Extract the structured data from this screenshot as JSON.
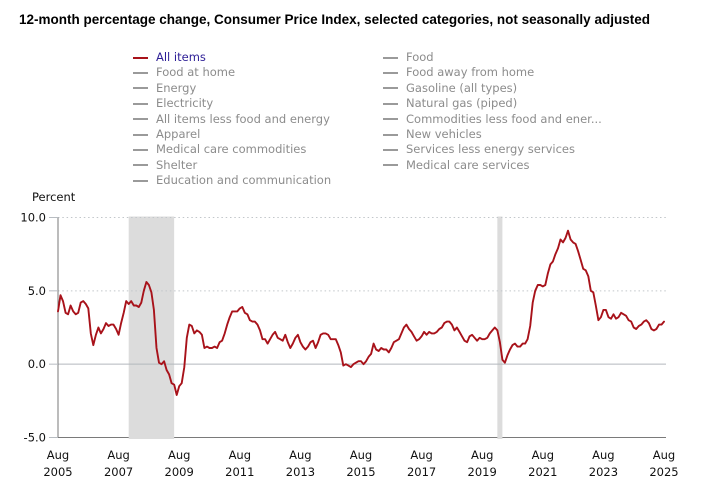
{
  "title": "12-month percentage change, Consumer Price Index, selected categories, not seasonally adjusted",
  "colors": {
    "line": "#a8121a",
    "selected_legend_text": "#2d1e96",
    "legend_text": "#8c8c8c",
    "legend_dash": "#9a9a9a",
    "recession_band": "#dcdcdc",
    "grid_dotted": "#c2c6ca",
    "zero_line": "#b3b8bd",
    "axis": "#7a7a7a",
    "tick": "#b7bcc1",
    "label": "#111111"
  },
  "legend": {
    "selected": "All items",
    "columns": [
      [
        "All items",
        "Food at home",
        "Energy",
        "Electricity",
        "All items less food and energy",
        "Apparel",
        "Medical care commodities",
        "Shelter",
        "Education and communication"
      ],
      [
        "Food",
        "Food away from home",
        "Gasoline (all types)",
        "Natural gas (piped)",
        "Commodities less food and ener...",
        "New vehicles",
        "Services less energy services",
        "Medical care services"
      ]
    ]
  },
  "chart_data": {
    "type": "line",
    "title": "12-month percentage change, Consumer Price Index, selected categories, not seasonally adjusted",
    "xlabel": "",
    "ylabel": "Percent",
    "ylim": [
      -5,
      10
    ],
    "grid": "horizontal-only",
    "legend_position": "top",
    "frequency": "monthly",
    "x_start": "2005-08",
    "x_end": "2025-08",
    "yticks": [
      {
        "label": "10.0",
        "value": 10,
        "grid": "dotted"
      },
      {
        "label": "5.0",
        "value": 5,
        "grid": "dotted"
      },
      {
        "label": "0.0",
        "value": 0,
        "grid": "solid"
      },
      {
        "label": "-5.0",
        "value": -5,
        "grid": "none"
      }
    ],
    "xticks": [
      [
        "Aug",
        "2005"
      ],
      [
        "Aug",
        "2007"
      ],
      [
        "Aug",
        "2009"
      ],
      [
        "Aug",
        "2011"
      ],
      [
        "Aug",
        "2013"
      ],
      [
        "Aug",
        "2015"
      ],
      [
        "Aug",
        "2017"
      ],
      [
        "Aug",
        "2019"
      ],
      [
        "Aug",
        "2021"
      ],
      [
        "Aug",
        "2023"
      ],
      [
        "Aug",
        "2025"
      ]
    ],
    "recession_bands": [
      {
        "start": "2007-12",
        "end": "2009-06"
      },
      {
        "start": "2020-02",
        "end": "2020-04"
      }
    ],
    "series": [
      {
        "name": "All items",
        "color": "#a8121a",
        "values": [
          3.6,
          4.7,
          4.3,
          3.5,
          3.4,
          4.0,
          3.6,
          3.4,
          3.5,
          4.2,
          4.3,
          4.1,
          3.8,
          2.1,
          1.3,
          2.0,
          2.5,
          2.1,
          2.4,
          2.8,
          2.6,
          2.7,
          2.7,
          2.4,
          2.0,
          2.8,
          3.5,
          4.3,
          4.1,
          4.3,
          4.0,
          4.0,
          3.9,
          4.2,
          5.0,
          5.6,
          5.4,
          4.9,
          3.7,
          1.1,
          0.1,
          0.0,
          0.2,
          -0.4,
          -0.7,
          -1.3,
          -1.4,
          -2.1,
          -1.5,
          -1.3,
          -0.2,
          1.8,
          2.7,
          2.6,
          2.1,
          2.3,
          2.2,
          2.0,
          1.1,
          1.2,
          1.1,
          1.1,
          1.2,
          1.1,
          1.5,
          1.6,
          2.1,
          2.7,
          3.2,
          3.6,
          3.6,
          3.6,
          3.8,
          3.9,
          3.5,
          3.4,
          3.0,
          2.9,
          2.9,
          2.7,
          2.3,
          1.7,
          1.7,
          1.4,
          1.7,
          2.0,
          2.2,
          1.8,
          1.7,
          1.6,
          2.0,
          1.5,
          1.1,
          1.4,
          1.8,
          2.0,
          1.5,
          1.2,
          1.0,
          1.2,
          1.5,
          1.6,
          1.1,
          1.5,
          2.0,
          2.1,
          2.1,
          2.0,
          1.7,
          1.7,
          1.7,
          1.3,
          0.8,
          -0.1,
          0.0,
          -0.1,
          -0.2,
          0.0,
          0.1,
          0.2,
          0.2,
          0.0,
          0.2,
          0.5,
          0.7,
          1.4,
          1.0,
          0.9,
          1.1,
          1.0,
          1.0,
          0.8,
          1.1,
          1.5,
          1.6,
          1.7,
          2.1,
          2.5,
          2.7,
          2.4,
          2.2,
          1.9,
          1.6,
          1.7,
          1.9,
          2.2,
          2.0,
          2.2,
          2.1,
          2.1,
          2.2,
          2.4,
          2.5,
          2.8,
          2.9,
          2.9,
          2.7,
          2.3,
          2.5,
          2.2,
          1.9,
          1.6,
          1.5,
          1.9,
          2.0,
          1.8,
          1.6,
          1.8,
          1.7,
          1.7,
          1.8,
          2.1,
          2.3,
          2.5,
          2.3,
          1.5,
          0.3,
          0.1,
          0.6,
          1.0,
          1.3,
          1.4,
          1.2,
          1.2,
          1.4,
          1.4,
          1.7,
          2.6,
          4.2,
          5.0,
          5.4,
          5.4,
          5.3,
          5.4,
          6.2,
          6.8,
          7.0,
          7.5,
          7.9,
          8.5,
          8.3,
          8.6,
          9.1,
          8.5,
          8.3,
          8.2,
          7.7,
          7.1,
          6.5,
          6.4,
          6.0,
          5.0,
          4.9,
          4.0,
          3.0,
          3.2,
          3.7,
          3.7,
          3.2,
          3.1,
          3.4,
          3.1,
          3.2,
          3.5,
          3.4,
          3.3,
          3.0,
          2.9,
          2.5,
          2.4,
          2.6,
          2.7,
          2.9,
          3.0,
          2.8,
          2.4,
          2.3,
          2.4,
          2.7,
          2.7,
          2.9
        ]
      }
    ]
  }
}
